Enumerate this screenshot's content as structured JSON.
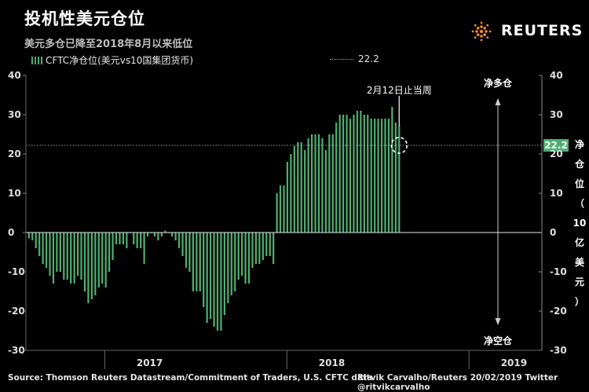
{
  "header": {
    "title": "投机性美元仓位",
    "subtitle": "美元多仓已降至2018年8月以来低位"
  },
  "brand": {
    "name": "REUTERS"
  },
  "legend": {
    "series_label": "CFTC净仓位(美元vs10国集团货币)",
    "ref_label": "22.2"
  },
  "footer": {
    "source": "Source: Thomson Reuters Datastream/Commitment of Traders, U.S. CFTC data",
    "credit": "Ritvik Carvalho/Reuters 20/02/2019 Twitter @ritvikcarvalho"
  },
  "colors": {
    "bar": "#4caf72",
    "background": "#000000",
    "ref_line": "#9a9a9a",
    "ref_badge": "#4caf72"
  },
  "chart_data": {
    "type": "bar",
    "title": "投机性美元仓位",
    "ylabel": "净仓位（10亿美元）",
    "ylim": [
      -30,
      40
    ],
    "yticks": [
      -30,
      -20,
      -10,
      0,
      10,
      20,
      30,
      40
    ],
    "xticks": [
      "2017",
      "2018",
      "2019"
    ],
    "x_range": [
      "2016-07-27",
      "2019-05-27"
    ],
    "x_tick_positions": [
      "2017-04-01",
      "2018-04-01",
      "2019-04-01"
    ],
    "year_boundaries": [
      "2017-01-01",
      "2018-01-01",
      "2019-01-01"
    ],
    "reference_value": 22.2,
    "annotations": {
      "stop_note": "2月12日止当周",
      "long_label": "净多仓",
      "short_label": "净空仓"
    },
    "series": [
      {
        "name": "CFTC净仓位(美元vs10国集团货币)",
        "start_date": "2016-08-02",
        "step_days": 7,
        "values": [
          -1.5,
          -2,
          -4,
          -6,
          -8,
          -9,
          -11,
          -13,
          -10,
          -10,
          -12,
          -12,
          -13,
          -13,
          -11,
          -12,
          -15,
          -18,
          -17,
          -16,
          -14,
          -13,
          -14,
          -10,
          -7,
          -3,
          -3,
          -3,
          -4,
          0,
          -3,
          -4,
          -4,
          -8,
          -1,
          0,
          -1,
          -2,
          -1,
          0.5,
          0,
          -1,
          -2,
          -4,
          -6,
          -9,
          -10,
          -15,
          -15,
          -15,
          -19,
          -23,
          -22,
          -24,
          -25,
          -25,
          -21,
          -18,
          -16,
          -15,
          -12,
          -11,
          -13,
          -13,
          -9,
          -8,
          -8,
          -7,
          -6,
          -6,
          -8,
          10,
          12,
          12,
          18,
          20,
          22,
          23,
          23,
          21,
          24,
          25,
          25,
          25,
          24,
          21,
          25,
          25,
          28,
          30,
          30,
          30,
          29,
          30,
          31,
          31,
          30,
          30,
          29,
          29,
          29,
          29,
          29,
          29,
          32,
          28,
          27
        ]
      }
    ]
  }
}
